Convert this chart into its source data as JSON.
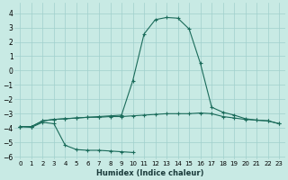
{
  "xlabel": "Humidex (Indice chaleur)",
  "xlim": [
    -0.5,
    23.5
  ],
  "ylim": [
    -6.2,
    4.7
  ],
  "yticks": [
    -6,
    -5,
    -4,
    -3,
    -2,
    -1,
    0,
    1,
    2,
    3,
    4
  ],
  "xticks": [
    0,
    1,
    2,
    3,
    4,
    5,
    6,
    7,
    8,
    9,
    10,
    11,
    12,
    13,
    14,
    15,
    16,
    17,
    18,
    19,
    20,
    21,
    22,
    23
  ],
  "background_color": "#c8eae4",
  "grid_color": "#a0d0cc",
  "line_color": "#1a6b5a",
  "line1_x": [
    0,
    1,
    2,
    3,
    4,
    5,
    6,
    7,
    8,
    9,
    10
  ],
  "line1_y": [
    -3.9,
    -3.95,
    -3.6,
    -3.7,
    -5.2,
    -5.5,
    -5.55,
    -5.55,
    -5.6,
    -5.65,
    -5.7
  ],
  "line2_x": [
    0,
    1,
    2,
    3,
    4,
    5,
    6,
    7,
    8,
    9,
    10,
    11,
    12,
    13,
    14,
    15,
    16,
    17,
    18,
    19,
    20,
    21,
    22,
    23
  ],
  "line2_y": [
    -3.9,
    -3.9,
    -3.5,
    -3.4,
    -3.35,
    -3.3,
    -3.25,
    -3.25,
    -3.2,
    -3.2,
    -3.15,
    -3.1,
    -3.05,
    -3.0,
    -3.0,
    -3.0,
    -2.95,
    -3.0,
    -3.2,
    -3.3,
    -3.4,
    -3.45,
    -3.5,
    -3.7
  ],
  "line3_x": [
    0,
    1,
    2,
    3,
    4,
    5,
    6,
    7,
    8,
    9,
    10,
    11,
    12,
    13,
    14,
    15,
    16,
    17,
    18,
    19,
    20,
    21,
    22,
    23
  ],
  "line3_y": [
    -3.9,
    -3.9,
    -3.5,
    -3.4,
    -3.35,
    -3.3,
    -3.25,
    -3.2,
    -3.15,
    -3.1,
    -0.7,
    2.55,
    3.55,
    3.7,
    3.65,
    2.9,
    0.5,
    -2.55,
    -2.9,
    -3.1,
    -3.35,
    -3.45,
    -3.5,
    -3.7
  ]
}
